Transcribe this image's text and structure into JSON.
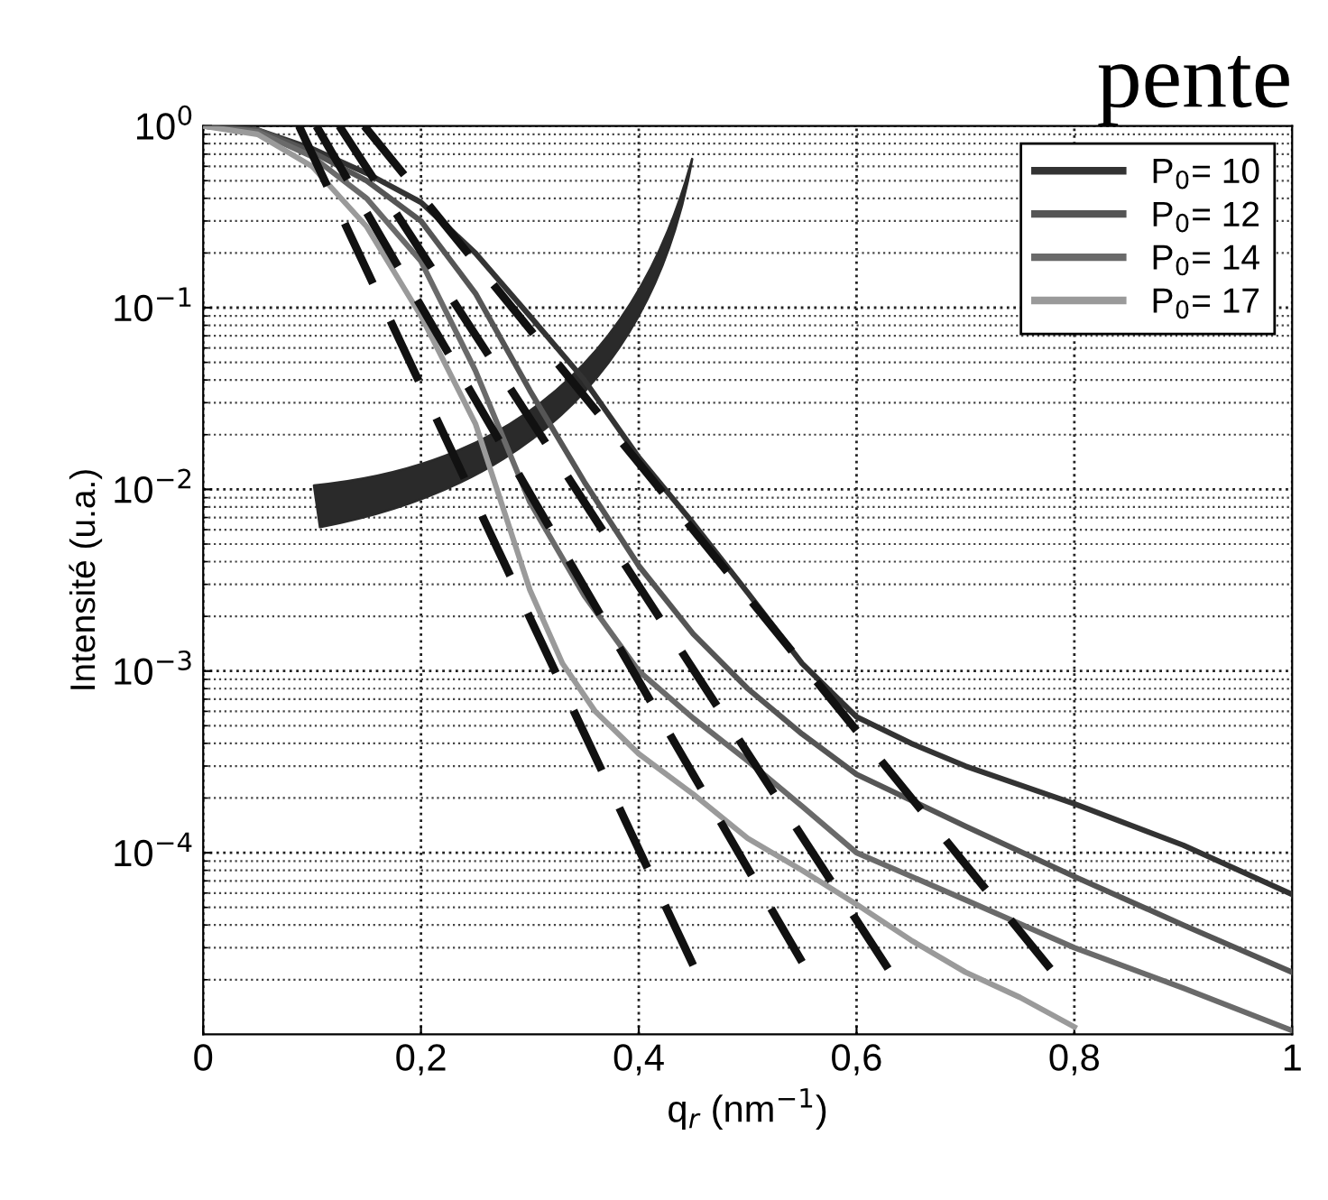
{
  "chart_data": {
    "type": "line",
    "title": "pente",
    "xlabel": "q$_{r}$ (nm$^{−1}$)",
    "ylabel": "Intensité (u.a.)",
    "log": "y",
    "grid": true,
    "legend": "top right",
    "marker": "none",
    "xlim": [
      0,
      1
    ],
    "ylim": [
      1e-05,
      1
    ],
    "xticks": [
      0,
      {
        "value": 0.2,
        "label": "0,2"
      },
      {
        "value": 0.4,
        "label": "0,4"
      },
      {
        "value": 0.6,
        "label": "0,6"
      },
      {
        "value": 0.8,
        "label": "0,8"
      },
      1
    ],
    "yticks": [
      {
        "value": 0.0001,
        "label": "10$^{−4}$"
      },
      {
        "value": 0.001,
        "label": "10$^{−3}$"
      },
      {
        "value": 0.01,
        "label": "10$^{−2}$"
      },
      {
        "value": 0.1,
        "label": "10$^{−1}$"
      },
      {
        "value": 1,
        "label": "10$^{0}$"
      }
    ],
    "series": [
      {
        "name": "P$_{0}$= 10",
        "color": "#333333",
        "line_style": "solid",
        "x": [
          0,
          0.05,
          0.1,
          0.15,
          0.2,
          0.25,
          0.3,
          0.35,
          0.4,
          0.45,
          0.5,
          0.55,
          0.6,
          0.65,
          0.7,
          0.8,
          0.9,
          1.0
        ],
        "values": [
          1,
          0.95,
          0.75,
          0.55,
          0.38,
          0.2,
          0.09,
          0.04,
          0.015,
          0.0065,
          0.0027,
          0.0011,
          0.00056,
          0.0004,
          0.0003,
          0.000186,
          0.00011,
          5.9e-05
        ]
      },
      {
        "name": "P$_{0}$= 12",
        "color": "#555555",
        "line_style": "solid",
        "x": [
          0,
          0.05,
          0.1,
          0.15,
          0.2,
          0.25,
          0.3,
          0.35,
          0.4,
          0.45,
          0.5,
          0.55,
          0.6,
          0.7,
          0.8,
          0.9,
          1.0
        ],
        "values": [
          1,
          0.95,
          0.72,
          0.5,
          0.3,
          0.12,
          0.035,
          0.011,
          0.0038,
          0.0016,
          0.0008,
          0.00045,
          0.00027,
          0.00014,
          7.4e-05,
          4e-05,
          2.2e-05
        ]
      },
      {
        "name": "P$_{0}$= 14",
        "color": "#6a6a6a",
        "line_style": "solid",
        "x": [
          0,
          0.05,
          0.1,
          0.15,
          0.2,
          0.25,
          0.3,
          0.35,
          0.4,
          0.45,
          0.5,
          0.55,
          0.6,
          0.7,
          0.8,
          0.9,
          1.0
        ],
        "values": [
          1,
          0.93,
          0.68,
          0.4,
          0.18,
          0.045,
          0.0085,
          0.0026,
          0.001,
          0.00055,
          0.00032,
          0.00018,
          0.0001,
          5.5e-05,
          3e-05,
          1.8e-05,
          1.05e-05
        ]
      },
      {
        "name": "P$_{0}$= 17",
        "color": "#9a9a9a",
        "line_style": "solid",
        "x": [
          0,
          0.05,
          0.1,
          0.15,
          0.2,
          0.25,
          0.3,
          0.33,
          0.36,
          0.4,
          0.45,
          0.5,
          0.55,
          0.6,
          0.65,
          0.7,
          0.75,
          0.8
        ],
        "values": [
          1,
          0.9,
          0.6,
          0.28,
          0.09,
          0.023,
          0.0028,
          0.0011,
          0.0006,
          0.00035,
          0.00021,
          0.00012,
          8e-05,
          5.2e-05,
          3.3e-05,
          2.2e-05,
          1.6e-05,
          1.1e-05
        ]
      },
      {
        "color": "#111111",
        "line_style": "dashed",
        "x": [
          0.088,
          0.45
        ],
        "values": [
          1,
          2.4e-05
        ]
      },
      {
        "color": "#111111",
        "line_style": "dashed",
        "x": [
          0.104,
          0.55
        ],
        "values": [
          1,
          2.5e-05
        ]
      },
      {
        "color": "#111111",
        "line_style": "dashed",
        "x": [
          0.125,
          0.629
        ],
        "values": [
          1,
          2.3e-05
        ]
      },
      {
        "color": "#111111",
        "line_style": "dashed",
        "x": [
          0.148,
          0.778
        ],
        "values": [
          1,
          2.3e-05
        ]
      }
    ]
  }
}
